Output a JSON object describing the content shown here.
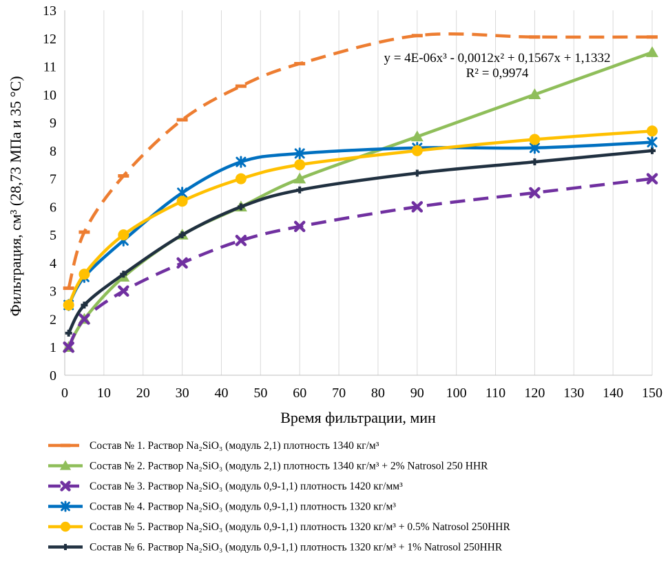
{
  "chart_data": {
    "type": "line",
    "xlabel": "Время фильтрации, мин",
    "ylabel": "Фильтрация, см³ (28,73 МПа и 35 °С)",
    "xlim": [
      0,
      150
    ],
    "ylim": [
      0,
      13
    ],
    "x_ticks": [
      "0",
      "10",
      "20",
      "30",
      "40",
      "50",
      "60",
      "70",
      "80",
      "90",
      "100",
      "110",
      "120",
      "130",
      "140",
      "150"
    ],
    "y_ticks": [
      "0",
      "1",
      "2",
      "3",
      "4",
      "5",
      "6",
      "7",
      "8",
      "9",
      "10",
      "11",
      "12",
      "13"
    ],
    "grid": "vertical",
    "legend_position": "bottom",
    "trendline": {
      "equation": "y = 4E-06x³ - 0,0012x² + 0,1567x + 1,1332",
      "r2": "R² = 0,9974"
    },
    "series": [
      {
        "name": "Состав № 1. Раствор Na₂SiO₃ (модуль 2,1) плотность 1340 кг/м³",
        "color": "#ED7D31",
        "dash": true,
        "marker": "dash",
        "x": [
          1,
          5,
          15,
          30,
          45,
          60,
          90,
          120,
          150
        ],
        "y": [
          3.1,
          5.1,
          7.1,
          9.1,
          10.3,
          11.1,
          12.1,
          12.05,
          12.05
        ]
      },
      {
        "name": "Состав № 2. Раствор Na₂SiO₃ (модуль 2,1) плотность 1340 кг/м³ + 2% Natrosol 250 HHR",
        "color": "#8FBE5A",
        "dash": false,
        "marker": "triangle",
        "x": [
          1,
          5,
          15,
          30,
          45,
          60,
          90,
          120,
          150
        ],
        "y": [
          1.0,
          2.0,
          3.5,
          5.0,
          6.0,
          7.0,
          8.5,
          10.0,
          11.5
        ]
      },
      {
        "name": "Состав № 3. Раствор Na₂SiO₃ (модуль 0,9-1,1) плотность 1420 кг/мм³",
        "color": "#7030A0",
        "dash": true,
        "marker": "x",
        "x": [
          1,
          5,
          15,
          30,
          45,
          60,
          90,
          120,
          150
        ],
        "y": [
          1.0,
          2.0,
          3.0,
          4.0,
          4.8,
          5.3,
          6.0,
          6.5,
          7.0
        ]
      },
      {
        "name": "Состав № 4. Раствор Na₂SiO₃ (модуль 0,9-1,1) плотность 1320 кг/м³",
        "color": "#0070C0",
        "dash": false,
        "marker": "star",
        "x": [
          1,
          5,
          15,
          30,
          45,
          60,
          90,
          120,
          150
        ],
        "y": [
          2.5,
          3.5,
          4.8,
          6.5,
          7.6,
          7.9,
          8.1,
          8.1,
          8.3
        ]
      },
      {
        "name": "Состав № 5. Раствор Na₂SiO₃ (модуль 0,9-1,1) плотность 1320 кг/м³ + 0.5% Natrosol 250HHR",
        "color": "#FFC000",
        "dash": false,
        "marker": "circle",
        "x": [
          1,
          5,
          15,
          30,
          45,
          60,
          90,
          120,
          150
        ],
        "y": [
          2.5,
          3.6,
          5.0,
          6.2,
          7.0,
          7.5,
          8.0,
          8.4,
          8.7
        ]
      },
      {
        "name": "Состав № 6. Раствор Na₂SiO₃ (модуль 0,9-1,1) плотность 1320 кг/м³ + 1% Natrosol 250HHR",
        "color": "#203040",
        "dash": false,
        "marker": "plus",
        "x": [
          1,
          5,
          15,
          30,
          45,
          60,
          90,
          120,
          150
        ],
        "y": [
          1.5,
          2.5,
          3.6,
          5.0,
          6.0,
          6.6,
          7.2,
          7.6,
          8.0
        ]
      }
    ]
  }
}
